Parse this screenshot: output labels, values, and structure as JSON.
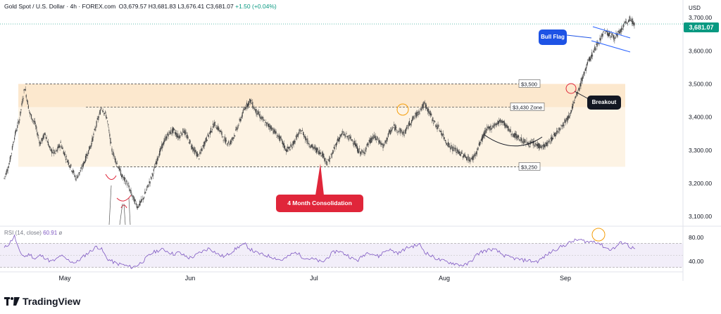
{
  "header": {
    "symbol": "Gold Spot / U.S. Dollar · 4h · FOREX.com",
    "open": "O3,679.57",
    "high": "H3,681.83",
    "low": "L3,676.41",
    "close": "C3,681.07",
    "change": "+1.50 (+0.04%)"
  },
  "axis": {
    "currency": "USD",
    "current_price": "3,681.07"
  },
  "rsi": {
    "label": "RSI (14, close)",
    "value": "60.91",
    "extra": "ø",
    "ticks": [
      "80.00",
      "40.00"
    ]
  },
  "annotations": {
    "bull_flag": "Bull Flag",
    "breakout": "Breakout",
    "consolidation": "4 Month Consolidation",
    "lvl_3500": "$3,500",
    "lvl_3430": "$3,430 Zone",
    "lvl_3250": "$3,250"
  },
  "brand": {
    "name": "TradingView"
  },
  "colors": {
    "zone_light": "#fdf3e4",
    "zone_dark": "#fbe0bd",
    "line": "#131722",
    "rsi_line": "#7e57c2",
    "rsi_band": "#ede7f6",
    "up": "#089981",
    "callout_blue": "#1e53e5",
    "callout_red": "#e0263a",
    "callout_dark": "#131722",
    "flag_blue": "#2962ff"
  },
  "chart_data": {
    "type": "line",
    "title": "Gold Spot / U.S. Dollar · 4h · FOREX.com",
    "xlabel": "",
    "ylabel": "USD",
    "x_ticks": [
      "May",
      "Jun",
      "Jul",
      "Aug",
      "Sep"
    ],
    "y_ticks": [
      3100,
      3200,
      3300,
      3400,
      3500,
      3600,
      3700
    ],
    "ylim": [
      3075,
      3715
    ],
    "grid": false,
    "series": [
      {
        "values": [
          3215,
          3260,
          3340,
          3395,
          3490,
          3410,
          3380,
          3320,
          3350,
          3300,
          3290,
          3320,
          3280,
          3250,
          3215,
          3240,
          3280,
          3320,
          3380,
          3430,
          3400,
          3300,
          3260,
          3220,
          3200,
          3160,
          3130,
          3150,
          3190,
          3230,
          3280,
          3320,
          3350,
          3360,
          3340,
          3360,
          3330,
          3300,
          3280,
          3320,
          3350,
          3380,
          3360,
          3330,
          3320,
          3350,
          3390,
          3430,
          3450,
          3420,
          3400,
          3380,
          3370,
          3350,
          3330,
          3300,
          3310,
          3340,
          3360,
          3330,
          3310,
          3300,
          3290,
          3260,
          3290,
          3330,
          3350,
          3340,
          3330,
          3300,
          3290,
          3320,
          3340,
          3330,
          3310,
          3350,
          3370,
          3360,
          3350,
          3380,
          3400,
          3420,
          3440,
          3410,
          3380,
          3360,
          3330,
          3310,
          3300,
          3290,
          3280,
          3270,
          3290,
          3330,
          3360,
          3370,
          3380,
          3390,
          3370,
          3350,
          3340,
          3330,
          3320,
          3320,
          3315,
          3310,
          3320,
          3340,
          3360,
          3380,
          3400,
          3440,
          3480,
          3530,
          3570,
          3600,
          3630,
          3660,
          3650,
          3640,
          3655,
          3680,
          3695,
          3681
        ]
      }
    ],
    "levels": [
      3500,
      3430,
      3250
    ],
    "annotations": [
      "Bull Flag",
      "Breakout",
      "4 Month Consolidation",
      "$3,500",
      "$3,430 Zone",
      "$3,250"
    ]
  },
  "rsi_data": {
    "ylim": [
      25,
      95
    ],
    "overbought": 70,
    "oversold": 30,
    "values": [
      62,
      70,
      82,
      55,
      48,
      52,
      44,
      50,
      46,
      40,
      42,
      50,
      44,
      40,
      38,
      45,
      52,
      58,
      65,
      60,
      45,
      40,
      36,
      35,
      32,
      30,
      34,
      40,
      48,
      55,
      58,
      60,
      56,
      52,
      55,
      50,
      46,
      48,
      54,
      58,
      62,
      56,
      50,
      48,
      54,
      60,
      66,
      68,
      60,
      55,
      52,
      50,
      48,
      45,
      42,
      46,
      52,
      55,
      48,
      45,
      44,
      42,
      38,
      46,
      54,
      58,
      54,
      50,
      44,
      42,
      50,
      56,
      52,
      48,
      56,
      60,
      56,
      54,
      60,
      64,
      66,
      68,
      56,
      50,
      46,
      42,
      40,
      38,
      36,
      34,
      34,
      40,
      50,
      56,
      58,
      60,
      58,
      52,
      48,
      46,
      44,
      42,
      42,
      40,
      40,
      46,
      52,
      58,
      62,
      66,
      70,
      74,
      76,
      74,
      72,
      74,
      70,
      64,
      60,
      62,
      70,
      72,
      64,
      61
    ]
  }
}
